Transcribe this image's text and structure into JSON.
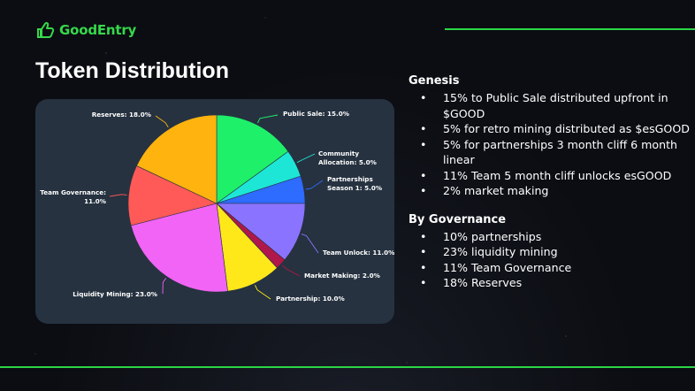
{
  "brand": {
    "name": "GoodEntry",
    "logo_icon": "thumbs-up-icon",
    "color": "#36d84a"
  },
  "page_title": "Token Distribution",
  "chart_data": {
    "type": "pie",
    "title": "",
    "slices": [
      {
        "label": "Public Sale: 15.0%",
        "value": 15.0,
        "color": "#1ef06a"
      },
      {
        "label": "Community Allocation: 5.0%",
        "value": 5.0,
        "color": "#1ee6d6"
      },
      {
        "label": "Partnerships Season 1: 5.0%",
        "value": 5.0,
        "color": "#2e6bff"
      },
      {
        "label": "Team Unlock: 11.0%",
        "value": 11.0,
        "color": "#8a73ff"
      },
      {
        "label": "Market Making: 2.0%",
        "value": 2.0,
        "color": "#b0174a"
      },
      {
        "label": "Partnership: 10.0%",
        "value": 10.0,
        "color": "#ffe81a"
      },
      {
        "label": "Liquidity Mining: 23.0%",
        "value": 23.0,
        "color": "#f264f5"
      },
      {
        "label": "Team Governance: 11.0%",
        "value": 11.0,
        "color": "#ff5a57"
      },
      {
        "label": "Reserves: 18.0%",
        "value": 18.0,
        "color": "#ffb30f"
      }
    ]
  },
  "genesis": {
    "title": "Genesis",
    "items": [
      "15% to Public Sale distributed upfront in $GOOD",
      "5% for retro mining distributed as $esGOOD",
      "5% for partnerships 3 month cliff 6 month linear",
      "11% Team 5 month cliff unlocks esGOOD",
      "2% market making"
    ]
  },
  "governance": {
    "title": "By Governance",
    "items": [
      "10% partnerships",
      "23% liquidity mining",
      "11% Team Governance",
      "18% Reserves"
    ]
  }
}
